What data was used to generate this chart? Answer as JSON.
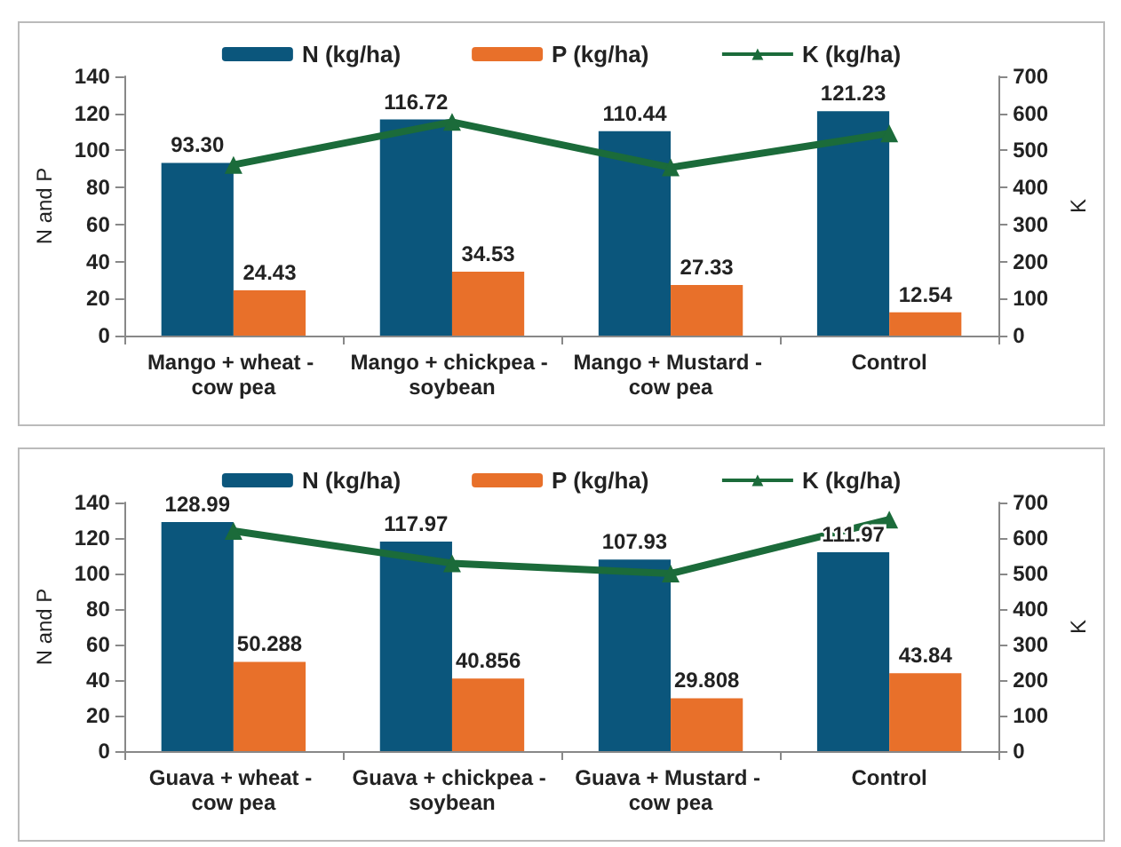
{
  "chart_data": [
    {
      "type": "bar",
      "categories": [
        "Mango + wheat - cow pea",
        "Mango + chickpea - soybean",
        "Mango + Mustard - cow pea",
        "Control"
      ],
      "ylabel": "N and P",
      "y2label": "K",
      "ylim": [
        0,
        140
      ],
      "yticks": [
        0,
        20,
        40,
        60,
        80,
        100,
        120,
        140
      ],
      "y2lim": [
        0,
        700
      ],
      "y2ticks": [
        0,
        100,
        200,
        300,
        400,
        500,
        600,
        700
      ],
      "grid": false,
      "legend": "top",
      "series": [
        {
          "name": "N (kg/ha)",
          "color": "#0b567c",
          "values": [
            93.3,
            116.72,
            110.44,
            121.23
          ],
          "value_labels": [
            "93.30",
            "116.72",
            "110.44",
            "121.23"
          ]
        },
        {
          "name": "P (kg/ha)",
          "color": "#e8702a",
          "values": [
            24.43,
            34.53,
            27.33,
            12.54
          ],
          "value_labels": [
            "24.43",
            "34.53",
            "27.33",
            "12.54"
          ]
        },
        {
          "name": "K (kg/ha)",
          "type": "line",
          "axis": "y2",
          "color": "#1b6b3a",
          "marker": "triangle",
          "values": [
            461,
            577,
            454,
            546
          ]
        }
      ]
    },
    {
      "type": "bar",
      "categories": [
        "Guava + wheat - cow pea",
        "Guava + chickpea - soybean",
        "Guava + Mustard - cow pea",
        "Control"
      ],
      "ylabel": "N and P",
      "y2label": "K",
      "ylim": [
        0,
        140
      ],
      "yticks": [
        0,
        20,
        40,
        60,
        80,
        100,
        120,
        140
      ],
      "y2lim": [
        0,
        700
      ],
      "y2ticks": [
        0,
        100,
        200,
        300,
        400,
        500,
        600,
        700
      ],
      "grid": false,
      "legend": "top",
      "series": [
        {
          "name": "N (kg/ha)",
          "color": "#0b567c",
          "values": [
            128.99,
            117.97,
            107.93,
            111.97
          ],
          "value_labels": [
            "128.99",
            "117.97",
            "107.93",
            "111.97"
          ]
        },
        {
          "name": "P (kg/ha)",
          "color": "#e8702a",
          "values": [
            50.288,
            40.856,
            29.808,
            43.84
          ],
          "value_labels": [
            "50.288",
            "40.856",
            "29.808",
            "43.84"
          ]
        },
        {
          "name": "K (kg/ha)",
          "type": "line",
          "axis": "y2",
          "color": "#1b6b3a",
          "marker": "triangle",
          "values": [
            620,
            529,
            500,
            652
          ]
        }
      ]
    }
  ]
}
